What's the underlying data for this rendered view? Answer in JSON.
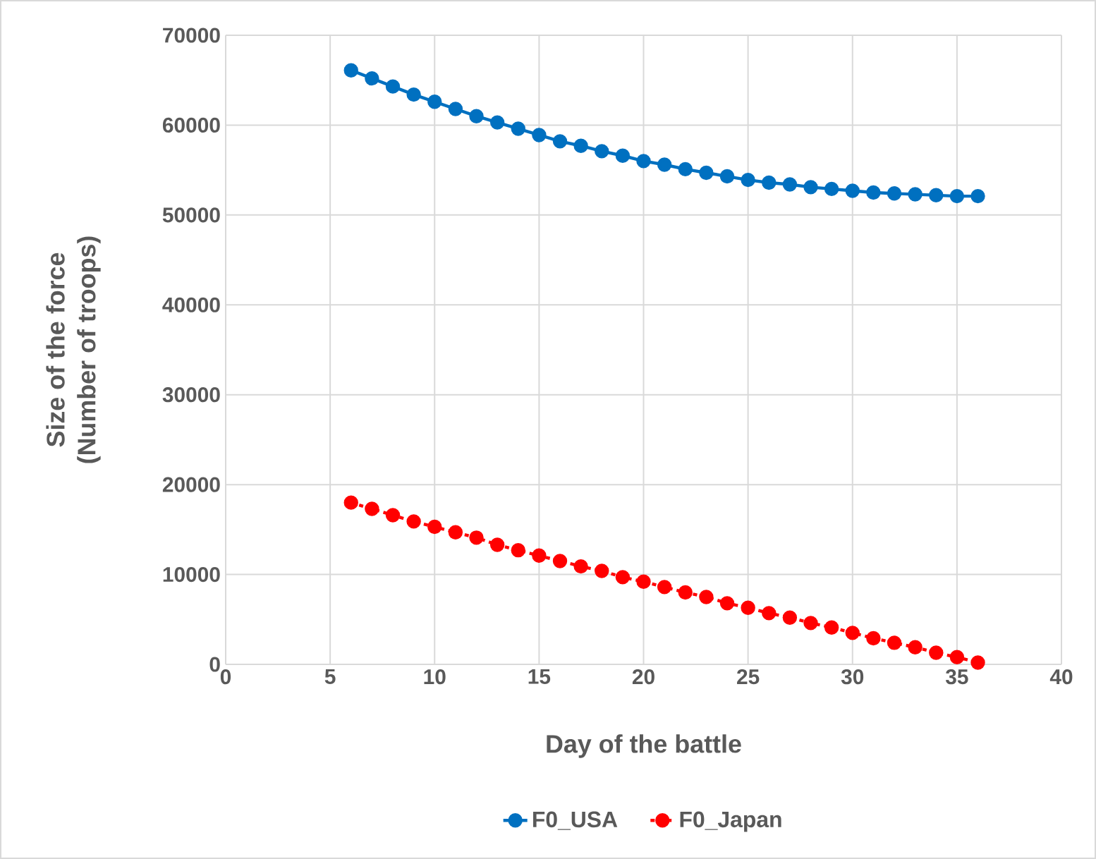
{
  "chart_data": {
    "type": "line",
    "xlabel": "Day of the battle",
    "ylabel": "Size of the force\n(Number of troops)",
    "x": [
      6,
      7,
      8,
      9,
      10,
      11,
      12,
      13,
      14,
      15,
      16,
      17,
      18,
      19,
      20,
      21,
      22,
      23,
      24,
      25,
      26,
      27,
      28,
      29,
      30,
      31,
      32,
      33,
      34,
      35,
      36
    ],
    "series": [
      {
        "name": "F0_USA",
        "color": "#0070c0",
        "line_style": "solid",
        "values": [
          66100,
          65200,
          64300,
          63400,
          62600,
          61800,
          61000,
          60300,
          59600,
          58900,
          58200,
          57700,
          57100,
          56600,
          56000,
          55600,
          55100,
          54700,
          54300,
          53900,
          53600,
          53400,
          53100,
          52900,
          52700,
          52500,
          52400,
          52300,
          52200,
          52100,
          52100
        ]
      },
      {
        "name": "F0_Japan",
        "color": "#ff0000",
        "line_style": "dashed",
        "values": [
          18000,
          17300,
          16600,
          15900,
          15300,
          14700,
          14100,
          13300,
          12700,
          12100,
          11500,
          10900,
          10400,
          9700,
          9200,
          8600,
          8000,
          7500,
          6800,
          6300,
          5700,
          5200,
          4600,
          4100,
          3500,
          2900,
          2400,
          1900,
          1300,
          800,
          200
        ]
      }
    ],
    "xlim": [
      0,
      40
    ],
    "ylim": [
      0,
      70000
    ],
    "xticks": [
      0,
      5,
      10,
      15,
      20,
      25,
      30,
      35,
      40
    ],
    "yticks": [
      0,
      10000,
      20000,
      30000,
      40000,
      50000,
      60000,
      70000
    ],
    "grid": true,
    "legend": "bottom",
    "marker": "circle"
  }
}
